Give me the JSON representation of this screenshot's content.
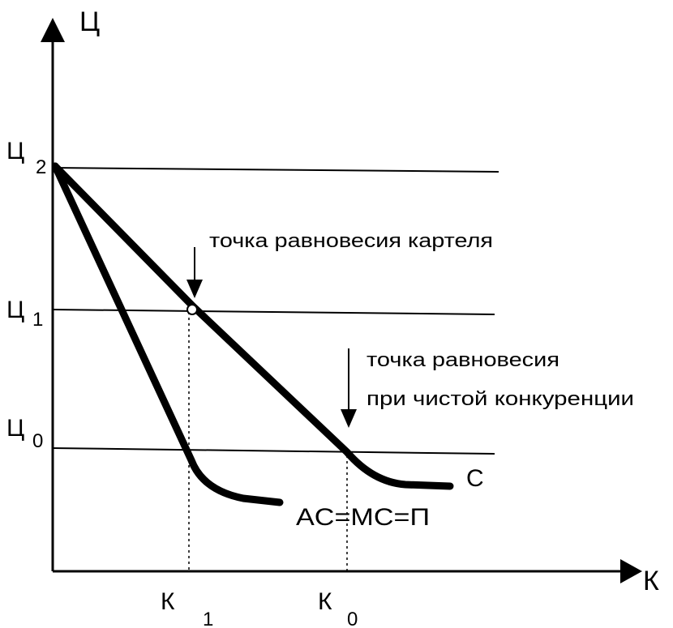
{
  "axes": {
    "y_label": "Ц",
    "x_label": "К"
  },
  "price_levels": [
    {
      "label": "Ц",
      "sub": "2"
    },
    {
      "label": "Ц",
      "sub": "1"
    },
    {
      "label": "Ц",
      "sub": "0"
    }
  ],
  "quantity_levels": [
    {
      "label": "К",
      "sub": "1"
    },
    {
      "label": "К",
      "sub": "0"
    }
  ],
  "annotations": {
    "cartel": "точка равновесия картеля",
    "competition_line1": "точка равновесия",
    "competition_line2": "при чистой конкуренции"
  },
  "curves": {
    "demand": "C",
    "cost": "AC=MC=П"
  }
}
